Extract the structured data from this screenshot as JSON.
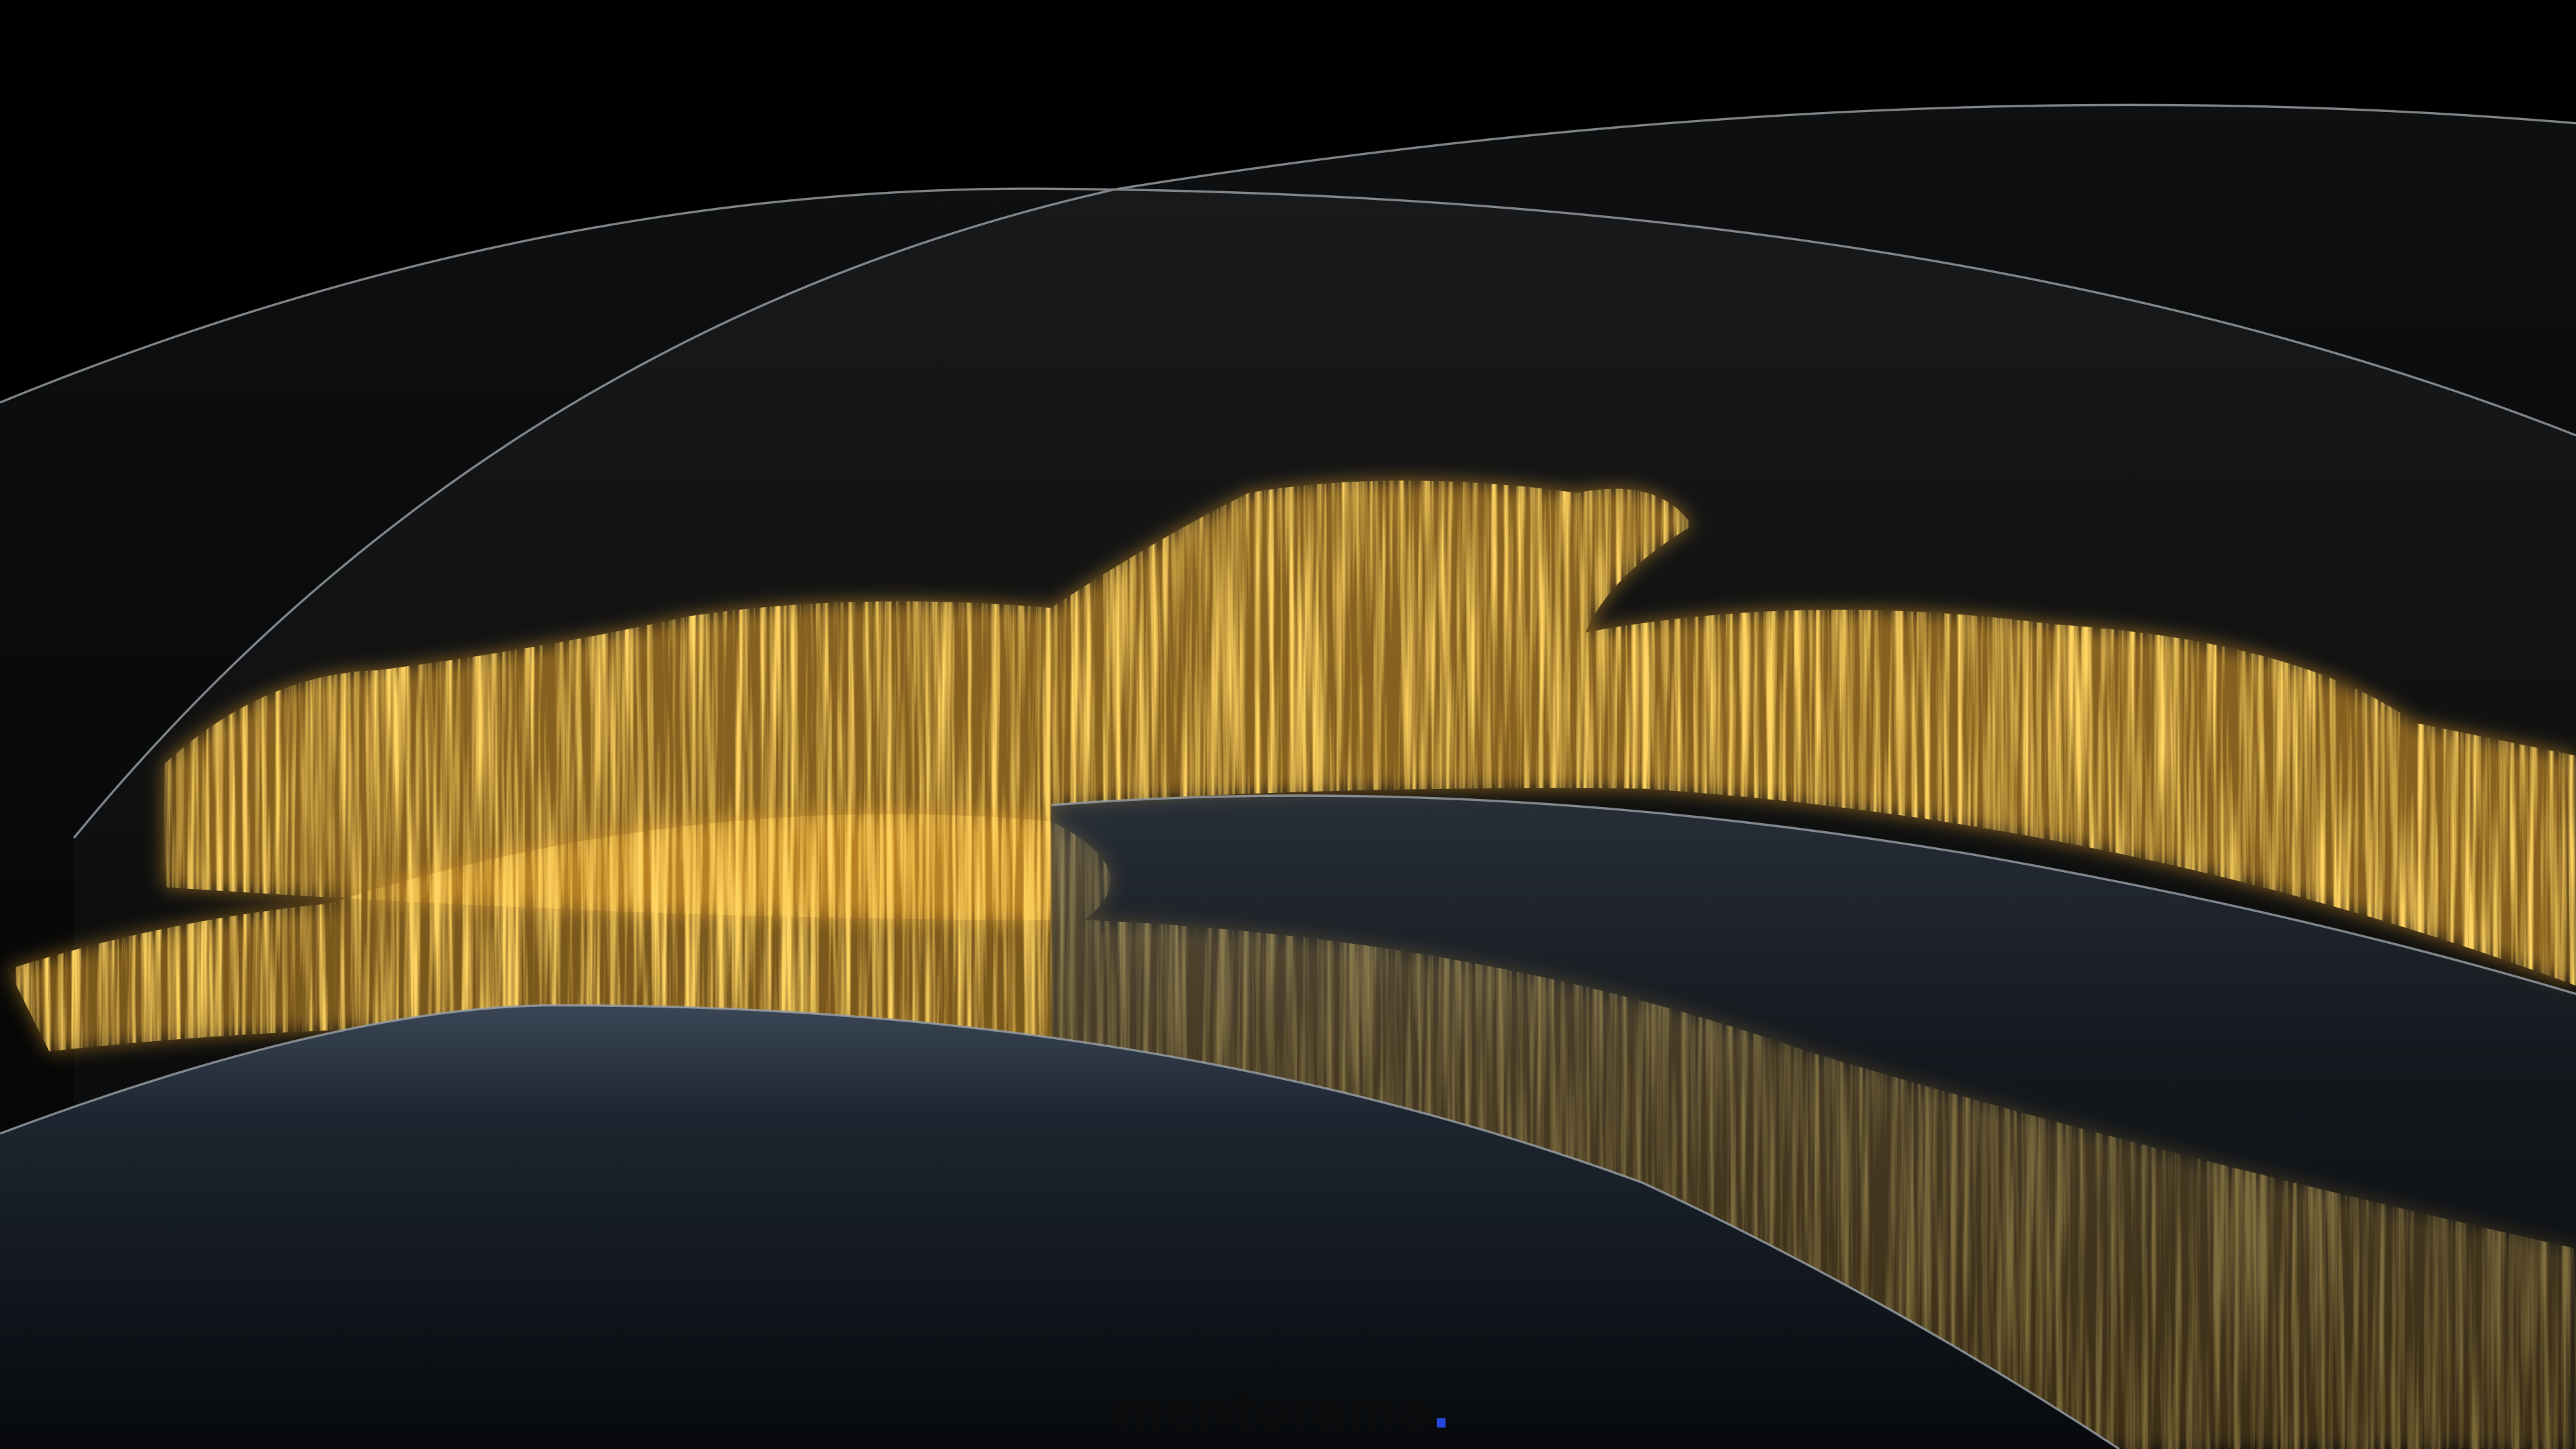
{
  "brand": {
    "name": "mentorama",
    "dot": "."
  }
}
